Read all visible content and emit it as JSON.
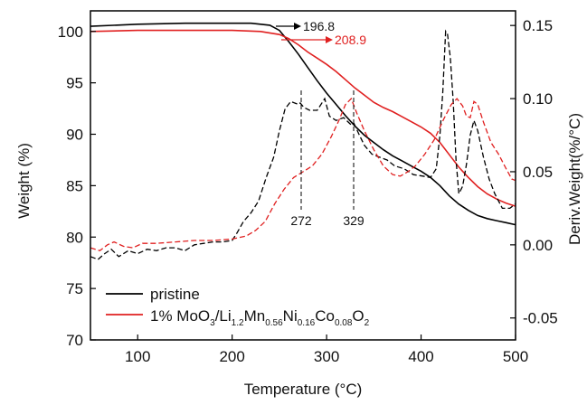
{
  "chart_data": {
    "type": "line",
    "xlabel": "Temperature (°C)",
    "ylabel_left": "Weight (%)",
    "ylabel_right": "Deriv.Weight(%/°C)",
    "xlim": [
      50,
      500
    ],
    "ylim_left": [
      70,
      102
    ],
    "ylim_right": [
      -0.065,
      0.16
    ],
    "x_ticks": [
      100,
      200,
      300,
      400,
      500
    ],
    "y_ticks_left": [
      70,
      75,
      80,
      85,
      90,
      95,
      100
    ],
    "y_ticks_right": [
      -0.05,
      0.0,
      0.05,
      0.1,
      0.15
    ],
    "y_tick_labels_right": [
      "-0.05",
      "0.00",
      "0.05",
      "0.10",
      "0.15"
    ],
    "grid": false,
    "legend_position": "bottom-left",
    "colors": {
      "pristine": "#000000",
      "coated": "#e02020"
    },
    "legend": {
      "pristine": "pristine",
      "coated_parts": [
        "1% MoO",
        "3",
        "/Li",
        "1.2",
        "Mn",
        "0.56",
        "Ni",
        "0.16",
        "Co",
        "0.08",
        "O",
        "2"
      ]
    },
    "annotations": {
      "onset_pristine": "196.8",
      "onset_coated": "208.9",
      "peak_1": "272",
      "peak_2": "329"
    },
    "series": [
      {
        "name": "pristine",
        "kind": "weight",
        "axis": "left",
        "style": "solid",
        "points": [
          [
            50,
            100.5
          ],
          [
            100,
            100.7
          ],
          [
            150,
            100.8
          ],
          [
            200,
            100.8
          ],
          [
            220,
            100.8
          ],
          [
            240,
            100.6
          ],
          [
            250,
            100.1
          ],
          [
            260,
            99.0
          ],
          [
            270,
            97.8
          ],
          [
            280,
            96.5
          ],
          [
            290,
            95.2
          ],
          [
            300,
            94.0
          ],
          [
            310,
            92.9
          ],
          [
            320,
            91.8
          ],
          [
            330,
            90.8
          ],
          [
            340,
            89.9
          ],
          [
            350,
            89.2
          ],
          [
            360,
            88.5
          ],
          [
            370,
            87.9
          ],
          [
            380,
            87.4
          ],
          [
            390,
            86.9
          ],
          [
            400,
            86.4
          ],
          [
            410,
            85.8
          ],
          [
            420,
            85.0
          ],
          [
            430,
            84.0
          ],
          [
            440,
            83.2
          ],
          [
            450,
            82.6
          ],
          [
            460,
            82.1
          ],
          [
            470,
            81.8
          ],
          [
            480,
            81.6
          ],
          [
            490,
            81.4
          ],
          [
            500,
            81.2
          ]
        ]
      },
      {
        "name": "1% MoO3/Li1.2Mn0.56Ni0.16Co0.08O2",
        "kind": "weight",
        "axis": "left",
        "style": "solid",
        "points": [
          [
            50,
            100.0
          ],
          [
            100,
            100.1
          ],
          [
            150,
            100.1
          ],
          [
            200,
            100.1
          ],
          [
            230,
            100.0
          ],
          [
            250,
            99.7
          ],
          [
            260,
            99.3
          ],
          [
            270,
            98.7
          ],
          [
            280,
            98.0
          ],
          [
            290,
            97.4
          ],
          [
            300,
            96.8
          ],
          [
            310,
            96.1
          ],
          [
            320,
            95.3
          ],
          [
            330,
            94.5
          ],
          [
            340,
            93.8
          ],
          [
            350,
            93.1
          ],
          [
            360,
            92.6
          ],
          [
            370,
            92.2
          ],
          [
            380,
            91.7
          ],
          [
            390,
            91.2
          ],
          [
            400,
            90.7
          ],
          [
            410,
            90.1
          ],
          [
            420,
            89.2
          ],
          [
            430,
            88.0
          ],
          [
            440,
            86.8
          ],
          [
            450,
            85.8
          ],
          [
            460,
            84.9
          ],
          [
            470,
            84.2
          ],
          [
            480,
            83.7
          ],
          [
            490,
            83.3
          ],
          [
            500,
            83.0
          ]
        ]
      },
      {
        "name": "pristine",
        "kind": "derivative",
        "axis": "right",
        "style": "dashed",
        "points": [
          [
            50,
            -0.008
          ],
          [
            58,
            -0.01
          ],
          [
            65,
            -0.006
          ],
          [
            72,
            -0.003
          ],
          [
            80,
            -0.008
          ],
          [
            90,
            -0.004
          ],
          [
            100,
            -0.006
          ],
          [
            110,
            -0.003
          ],
          [
            120,
            -0.004
          ],
          [
            130,
            -0.002
          ],
          [
            140,
            -0.002
          ],
          [
            150,
            -0.004
          ],
          [
            160,
            0.0
          ],
          [
            170,
            0.001
          ],
          [
            180,
            0.002
          ],
          [
            190,
            0.002
          ],
          [
            200,
            0.003
          ],
          [
            205,
            0.008
          ],
          [
            212,
            0.016
          ],
          [
            220,
            0.022
          ],
          [
            228,
            0.03
          ],
          [
            236,
            0.046
          ],
          [
            244,
            0.06
          ],
          [
            250,
            0.078
          ],
          [
            256,
            0.093
          ],
          [
            262,
            0.098
          ],
          [
            270,
            0.096
          ],
          [
            272,
            0.097
          ],
          [
            276,
            0.094
          ],
          [
            282,
            0.092
          ],
          [
            290,
            0.092
          ],
          [
            298,
            0.1
          ],
          [
            303,
            0.088
          ],
          [
            310,
            0.085
          ],
          [
            318,
            0.087
          ],
          [
            326,
            0.082
          ],
          [
            329,
            0.083
          ],
          [
            334,
            0.076
          ],
          [
            340,
            0.068
          ],
          [
            348,
            0.062
          ],
          [
            356,
            0.06
          ],
          [
            364,
            0.058
          ],
          [
            372,
            0.054
          ],
          [
            382,
            0.052
          ],
          [
            392,
            0.048
          ],
          [
            402,
            0.047
          ],
          [
            410,
            0.046
          ],
          [
            416,
            0.052
          ],
          [
            420,
            0.075
          ],
          [
            423,
            0.105
          ],
          [
            426,
            0.146
          ],
          [
            428,
            0.144
          ],
          [
            431,
            0.128
          ],
          [
            434,
            0.098
          ],
          [
            437,
            0.058
          ],
          [
            440,
            0.035
          ],
          [
            444,
            0.04
          ],
          [
            448,
            0.055
          ],
          [
            452,
            0.075
          ],
          [
            456,
            0.085
          ],
          [
            460,
            0.078
          ],
          [
            466,
            0.06
          ],
          [
            472,
            0.045
          ],
          [
            478,
            0.035
          ],
          [
            486,
            0.025
          ],
          [
            494,
            0.025
          ],
          [
            500,
            0.028
          ]
        ]
      },
      {
        "name": "1% MoO3/Li1.2Mn0.56Ni0.16Co0.08O2",
        "kind": "derivative",
        "axis": "right",
        "style": "dashed",
        "points": [
          [
            50,
            -0.002
          ],
          [
            60,
            -0.004
          ],
          [
            68,
            0.0
          ],
          [
            75,
            0.002
          ],
          [
            85,
            -0.001
          ],
          [
            95,
            -0.002
          ],
          [
            105,
            0.001
          ],
          [
            120,
            0.001
          ],
          [
            140,
            0.002
          ],
          [
            160,
            0.003
          ],
          [
            180,
            0.003
          ],
          [
            200,
            0.004
          ],
          [
            215,
            0.006
          ],
          [
            225,
            0.01
          ],
          [
            235,
            0.016
          ],
          [
            245,
            0.028
          ],
          [
            255,
            0.038
          ],
          [
            265,
            0.046
          ],
          [
            275,
            0.05
          ],
          [
            285,
            0.054
          ],
          [
            295,
            0.062
          ],
          [
            305,
            0.074
          ],
          [
            313,
            0.085
          ],
          [
            320,
            0.096
          ],
          [
            326,
            0.1
          ],
          [
            332,
            0.09
          ],
          [
            340,
            0.078
          ],
          [
            350,
            0.065
          ],
          [
            360,
            0.054
          ],
          [
            370,
            0.048
          ],
          [
            378,
            0.047
          ],
          [
            386,
            0.05
          ],
          [
            394,
            0.054
          ],
          [
            404,
            0.062
          ],
          [
            414,
            0.072
          ],
          [
            424,
            0.086
          ],
          [
            432,
            0.096
          ],
          [
            438,
            0.1
          ],
          [
            444,
            0.095
          ],
          [
            448,
            0.088
          ],
          [
            452,
            0.087
          ],
          [
            456,
            0.098
          ],
          [
            460,
            0.096
          ],
          [
            466,
            0.084
          ],
          [
            474,
            0.07
          ],
          [
            482,
            0.062
          ],
          [
            490,
            0.052
          ],
          [
            496,
            0.045
          ],
          [
            500,
            0.044
          ]
        ]
      }
    ]
  }
}
